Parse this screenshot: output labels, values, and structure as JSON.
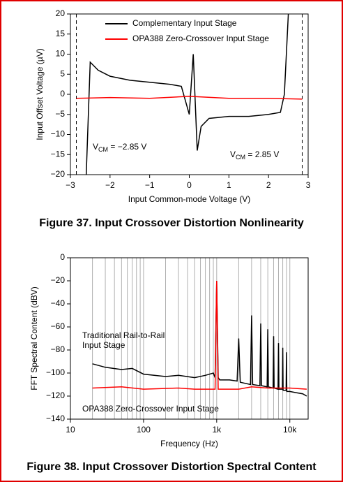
{
  "chart_data": [
    {
      "type": "line",
      "y_label": "Input Offset Voltage (µV)",
      "x_label": "Input Common-mode Voltage (V)",
      "caption": "Figure 37.  Input Crossover Distortion Nonlinearity",
      "xlim": [
        -3,
        3
      ],
      "xticks": [
        {
          "value": -3,
          "label": "−3"
        },
        {
          "value": -2,
          "label": "−2"
        },
        {
          "value": -1,
          "label": "−1"
        },
        0,
        1,
        2,
        3
      ],
      "ylim": [
        -20,
        20
      ],
      "yticks": [
        {
          "value": -20,
          "label": "−20"
        },
        {
          "value": -15,
          "label": "−15"
        },
        {
          "value": -10,
          "label": "−10"
        },
        {
          "value": -5,
          "label": "−5"
        },
        0,
        5,
        10,
        15,
        20
      ],
      "grid": false,
      "legend": "top",
      "vlines": [
        -2.85,
        2.85
      ],
      "annotations": [
        {
          "parts": [
            "V",
            "CM",
            " = −2.85 V"
          ]
        },
        {
          "parts": [
            "V",
            "CM",
            " = 2.85 V"
          ]
        }
      ],
      "series": [
        {
          "name": "Complementary Input Stage",
          "color": "#000000",
          "x": [
            -2.6,
            -2.5,
            -2.3,
            -2,
            -1.5,
            -1,
            -0.5,
            -0.2,
            0,
            0.1,
            0.2,
            0.3,
            0.5,
            1,
            1.5,
            2,
            2.3,
            2.4,
            2.5
          ],
          "values": [
            -20,
            8,
            6,
            4.5,
            3.5,
            3,
            2.5,
            2,
            -5,
            10,
            -14,
            -8,
            -6,
            -5.5,
            -5.5,
            -5,
            -4.5,
            0,
            20
          ]
        },
        {
          "name": "OPA388 Zero-Crossover Input Stage",
          "color": "#ff0000",
          "x": [
            -2.85,
            -2,
            -1,
            0,
            1,
            2,
            2.85
          ],
          "values": [
            -1,
            -0.8,
            -1,
            -0.5,
            -1,
            -1,
            -1.2
          ]
        }
      ]
    },
    {
      "type": "line",
      "y_label": "FFT Spectral Content (dBV)",
      "x_label": "Frequency (Hz)",
      "caption": "Figure 38.  Input Crossover Distortion Spectral Content",
      "log_x": true,
      "xlim": [
        10,
        17800
      ],
      "xticks": [
        10,
        100,
        {
          "value": 1000,
          "label": "1k"
        },
        {
          "value": 10000,
          "label": "10k"
        }
      ],
      "xgrid_minor": [
        20,
        30,
        40,
        50,
        60,
        70,
        80,
        90,
        200,
        300,
        400,
        500,
        600,
        700,
        800,
        900,
        2000,
        3000,
        4000,
        5000,
        6000,
        7000,
        8000,
        9000
      ],
      "ylim": [
        -140,
        0
      ],
      "yticks": [
        {
          "value": -140,
          "label": "−140"
        },
        {
          "value": -120,
          "label": "−120"
        },
        {
          "value": -100,
          "label": "−100"
        },
        {
          "value": -80,
          "label": "−80"
        },
        {
          "value": -60,
          "label": "−60"
        },
        {
          "value": -40,
          "label": "−40"
        },
        {
          "value": -20,
          "label": "−20"
        },
        0
      ],
      "grid": true,
      "annotations": [
        {
          "lines": [
            "Traditional Rail-to-Rail",
            "Input Stage"
          ]
        },
        {
          "lines": [
            "OPA388 Zero-Crossover Input Stage"
          ]
        }
      ],
      "series": [
        {
          "color": "#000000",
          "x": [
            20,
            30,
            50,
            70,
            100,
            200,
            300,
            500,
            700,
            900,
            950,
            1000,
            1050,
            1100,
            1500,
            1900,
            2000,
            2100,
            2900,
            3000,
            3100,
            3900,
            4000,
            4100,
            4900,
            5000,
            5100,
            5900,
            6000,
            6100,
            6900,
            7000,
            7100,
            7900,
            8000,
            8100,
            8900,
            9000,
            9100,
            10000,
            12000,
            15000,
            17000
          ],
          "values": [
            -92,
            -95,
            -97,
            -96,
            -101,
            -103,
            -102,
            -104,
            -102,
            -100,
            -104,
            -20,
            -104,
            -106,
            -106,
            -107,
            -70,
            -108,
            -110,
            -50,
            -110,
            -111,
            -57,
            -111,
            -112,
            -62,
            -112,
            -113,
            -68,
            -113,
            -114,
            -74,
            -114,
            -114,
            -78,
            -115,
            -115,
            -82,
            -116,
            -116,
            -117,
            -118,
            -120
          ]
        },
        {
          "color": "#ff0000",
          "x": [
            20,
            50,
            100,
            300,
            500,
            900,
            950,
            1000,
            1050,
            2000,
            3000,
            5000,
            10000,
            17000
          ],
          "values": [
            -113,
            -112,
            -114,
            -113,
            -114,
            -114,
            -114,
            -20,
            -114,
            -114,
            -112,
            -113,
            -113,
            -114
          ]
        }
      ]
    }
  ]
}
